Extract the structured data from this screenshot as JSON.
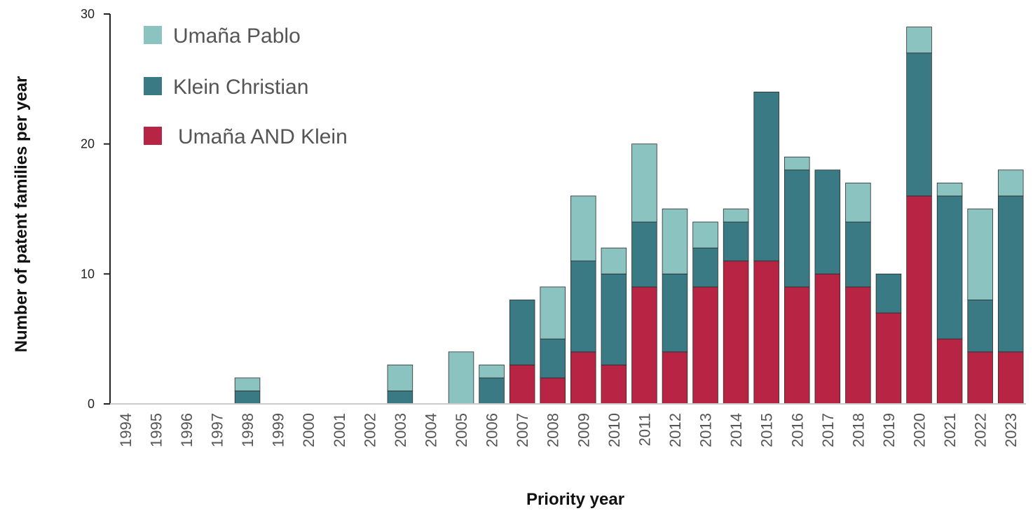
{
  "chart_data": {
    "type": "bar",
    "stacked": true,
    "xlabel": "Priority year",
    "ylabel": "Number of patent families per year",
    "ylim": [
      0,
      30
    ],
    "yticks": [
      0,
      10,
      20,
      30
    ],
    "grid": false,
    "legend_position": "top-left",
    "categories": [
      "1994",
      "1995",
      "1996",
      "1997",
      "1998",
      "1999",
      "2000",
      "2001",
      "2002",
      "2003",
      "2004",
      "2005",
      "2006",
      "2007",
      "2008",
      "2009",
      "2010",
      "2011",
      "2012",
      "2013",
      "2014",
      "2015",
      "2016",
      "2017",
      "2018",
      "2019",
      "2020",
      "2021",
      "2022",
      "2023"
    ],
    "series": [
      {
        "name": "Umaña AND Klein",
        "color": "#b82443",
        "values": [
          0,
          0,
          0,
          0,
          0,
          0,
          0,
          0,
          0,
          0,
          0,
          0,
          0,
          3,
          2,
          4,
          3,
          9,
          4,
          9,
          11,
          11,
          9,
          10,
          9,
          7,
          16,
          5,
          4,
          4
        ]
      },
      {
        "name": "Klein Christian",
        "color": "#3a7a84",
        "values": [
          0,
          0,
          0,
          0,
          1,
          0,
          0,
          0,
          0,
          1,
          0,
          0,
          2,
          5,
          3,
          7,
          7,
          5,
          6,
          3,
          3,
          13,
          9,
          8,
          5,
          3,
          11,
          11,
          4,
          12
        ]
      },
      {
        "name": "Umaña Pablo",
        "color": "#8bc3c1",
        "values": [
          0,
          0,
          0,
          0,
          1,
          0,
          0,
          0,
          0,
          2,
          0,
          4,
          1,
          0,
          4,
          5,
          2,
          6,
          5,
          2,
          1,
          0,
          1,
          0,
          3,
          0,
          2,
          1,
          7,
          2
        ]
      }
    ],
    "legend_order": [
      "Umaña Pablo",
      "Klein Christian",
      "Umaña AND Klein"
    ]
  }
}
